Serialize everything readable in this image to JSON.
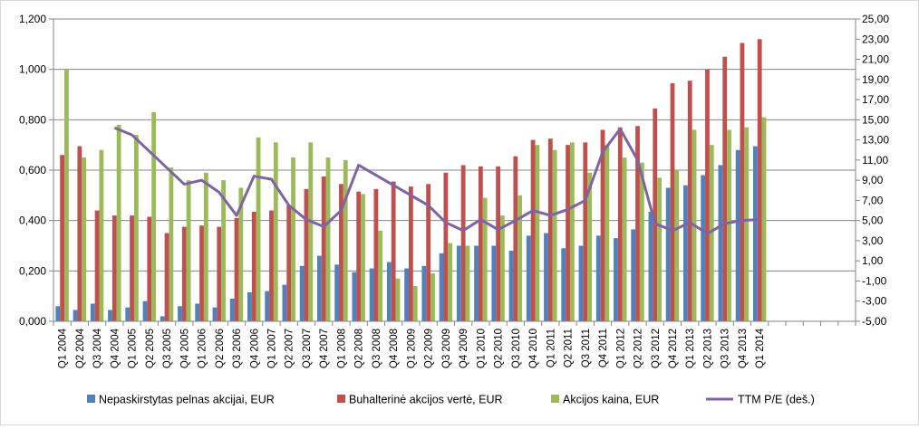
{
  "chart_data": {
    "type": "bar",
    "title": "",
    "xlabel": "",
    "ylabel": "",
    "categories": [
      "Q1 2004",
      "Q2 2004",
      "Q3 2004",
      "Q4 2004",
      "Q1 2005",
      "Q2 2005",
      "Q3 2005",
      "Q4 2005",
      "Q1 2006",
      "Q2 2006",
      "Q3 2006",
      "Q4 2006",
      "Q1 2007",
      "Q2 2007",
      "Q3 2007",
      "Q4 2007",
      "Q1 2008",
      "Q2 2008",
      "Q3 2008",
      "Q4 2008",
      "Q1 2009",
      "Q2 2009",
      "Q3 2009",
      "Q4 2009",
      "Q1 2010",
      "Q2 2010",
      "Q3 2010",
      "Q4 2010",
      "Q1 2011",
      "Q2 2011",
      "Q3 2011",
      "Q4 2011",
      "Q1 2012",
      "Q2 2012",
      "Q3 2012",
      "Q4 2012",
      "Q1 2013",
      "Q2 2013",
      "Q3 2013",
      "Q4 2013",
      "Q1 2014"
    ],
    "y_left": {
      "lim": [
        0,
        1.2
      ],
      "ticks": [
        "0,000",
        "0,200",
        "0,400",
        "0,600",
        "0,800",
        "1,000",
        "1,200"
      ]
    },
    "y_right": {
      "lim": [
        -5,
        25
      ],
      "ticks": [
        "-5,00",
        "-3,00",
        "-1,00",
        "1,00",
        "3,00",
        "5,00",
        "7,00",
        "9,00",
        "11,00",
        "13,00",
        "15,00",
        "17,00",
        "19,00",
        "21,00",
        "23,00",
        "25,00"
      ]
    },
    "grid": true,
    "legend_position": "bottom",
    "series": [
      {
        "name": "Nepaskirstytas pelnas akcijai, EUR",
        "type": "bar",
        "axis": "left",
        "color": "#4f81bd",
        "values": [
          0.06,
          0.045,
          0.07,
          0.045,
          0.055,
          0.08,
          0.02,
          0.06,
          0.07,
          0.055,
          0.09,
          0.115,
          0.12,
          0.145,
          0.22,
          0.26,
          0.225,
          0.195,
          0.21,
          0.235,
          0.21,
          0.22,
          0.27,
          0.3,
          0.3,
          0.3,
          0.28,
          0.34,
          0.35,
          0.29,
          0.3,
          0.34,
          0.33,
          0.365,
          0.435,
          0.53,
          0.54,
          0.58,
          0.62,
          0.68,
          0.695
        ]
      },
      {
        "name": "Buhalterinė akcijos vertė, EUR",
        "type": "bar",
        "axis": "left",
        "color": "#c0504d",
        "values": [
          0.66,
          0.695,
          0.44,
          0.42,
          0.42,
          0.415,
          0.35,
          0.375,
          0.38,
          0.375,
          0.41,
          0.435,
          0.44,
          0.46,
          0.525,
          0.575,
          0.545,
          0.515,
          0.525,
          0.555,
          0.535,
          0.545,
          0.59,
          0.62,
          0.615,
          0.615,
          0.655,
          0.72,
          0.725,
          0.7,
          0.71,
          0.76,
          0.77,
          0.775,
          0.845,
          0.945,
          0.955,
          1.0,
          1.05,
          1.105,
          1.12
        ]
      },
      {
        "name": "Akcijos kaina, EUR",
        "type": "bar",
        "axis": "left",
        "color": "#9bbb59",
        "values": [
          1.0,
          0.65,
          0.68,
          0.78,
          0.74,
          0.83,
          0.61,
          0.56,
          0.59,
          0.56,
          0.53,
          0.73,
          0.71,
          0.65,
          0.71,
          0.65,
          0.64,
          0.505,
          0.36,
          0.17,
          0.14,
          0.19,
          0.31,
          0.3,
          0.49,
          0.42,
          0.5,
          0.7,
          0.68,
          0.71,
          0.59,
          0.7,
          0.65,
          0.63,
          0.57,
          0.6,
          0.76,
          0.7,
          0.76,
          0.77,
          0.81
        ]
      },
      {
        "name": "TTM P/E (deš.)",
        "type": "line",
        "axis": "right",
        "color": "#8064a2",
        "values": [
          null,
          null,
          null,
          14.2,
          13.5,
          null,
          null,
          8.6,
          9.0,
          7.8,
          5.5,
          9.4,
          9.1,
          6.5,
          5.1,
          4.4,
          6.0,
          10.5,
          null,
          null,
          null,
          6.5,
          4.8,
          4.0,
          5.1,
          4.1,
          5.0,
          6.0,
          5.5,
          6.1,
          7.0,
          11.8,
          14.1,
          11.0,
          4.7,
          4.0,
          4.8,
          3.7,
          4.7,
          5.0,
          5.1
        ]
      }
    ]
  }
}
